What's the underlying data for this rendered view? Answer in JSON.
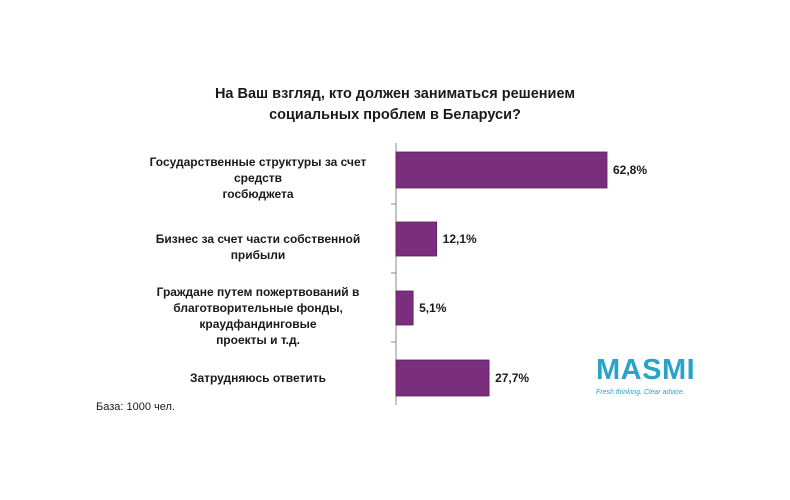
{
  "chart_data": {
    "type": "bar",
    "orientation": "horizontal",
    "title_lines": [
      "На Ваш взгляд, кто должен заниматься решением",
      "социальных проблем в Беларуси?"
    ],
    "categories": [
      [
        "Государственные структуры за счет средств",
        "госбюджета"
      ],
      [
        "Бизнес за счет части собственной прибыли"
      ],
      [
        "Граждане путем пожертвований в",
        "благотворительные фонды, краудфандинговые",
        "проекты и т.д."
      ],
      [
        "Затрудняюсь ответить"
      ]
    ],
    "values": [
      62.8,
      12.1,
      5.1,
      27.7
    ],
    "value_labels": [
      "62,8%",
      "12,1%",
      "5,1%",
      "27,7%"
    ],
    "xlim": [
      0,
      100
    ],
    "bar_color": "#7b2d7e",
    "legend": "none",
    "grid": false
  },
  "footnote": "База: 1000 чел.",
  "logo": {
    "word": "MASMI",
    "tagline": "Fresh thinking. Clear advice."
  }
}
